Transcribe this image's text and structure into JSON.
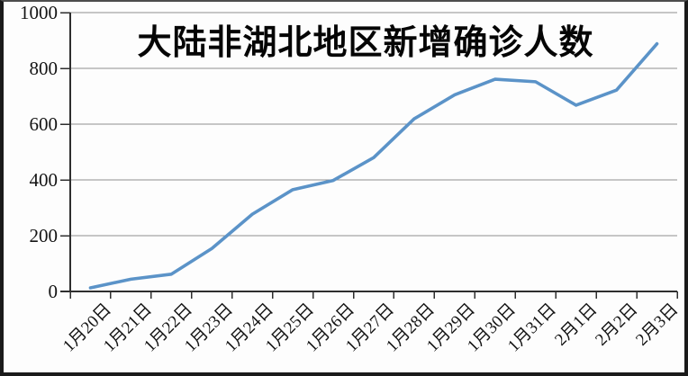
{
  "chart_data": {
    "type": "line",
    "title": "大陆非湖北地区新增确诊人数",
    "categories": [
      "1月20日",
      "1月21日",
      "1月22日",
      "1月23日",
      "1月24日",
      "1月25日",
      "1月26日",
      "1月27日",
      "1月28日",
      "1月29日",
      "1月30日",
      "1月31日",
      "2月1日",
      "2月2日",
      "2月3日"
    ],
    "values": [
      13,
      44,
      62,
      154,
      277,
      365,
      398,
      480,
      619,
      705,
      761,
      752,
      668,
      722,
      888
    ],
    "xlabel": "",
    "ylabel": "",
    "ylim": [
      0,
      1000
    ],
    "ytick_step": 200,
    "ytick_labels": [
      "0",
      "200",
      "400",
      "600",
      "800",
      "1000"
    ],
    "grid": true,
    "legend": false,
    "markers": false,
    "colors": {
      "line": "#5B93C8",
      "grid": "#8f8f8f",
      "axis": "#2e2e2e",
      "text": "#141414",
      "background": "#fdfdfd",
      "frame": "#1a1a1a"
    }
  }
}
